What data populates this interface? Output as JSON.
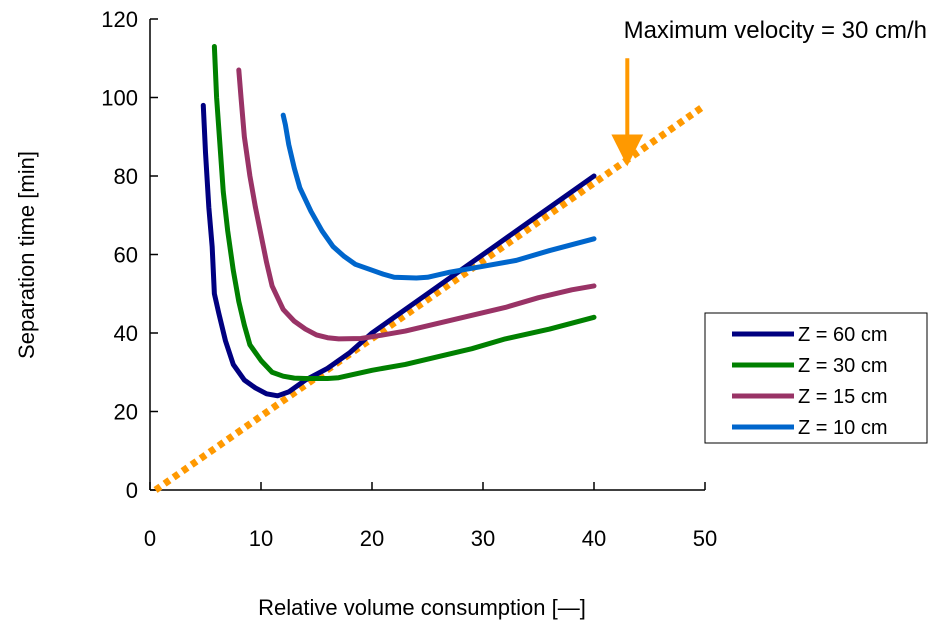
{
  "chart_data": {
    "type": "line",
    "title": "",
    "xlabel": "Relative volume consumption [—]",
    "ylabel": "Separation time [min]",
    "xlim": [
      0,
      50
    ],
    "ylim": [
      0,
      120
    ],
    "xticks": [
      0,
      10,
      20,
      30,
      40,
      50
    ],
    "yticks": [
      0,
      20,
      40,
      60,
      80,
      100,
      120
    ],
    "grid": false,
    "legend_position": "right",
    "series": [
      {
        "name": "Z = 60 cm",
        "color": "#000080",
        "points": [
          [
            4.8,
            98
          ],
          [
            5.0,
            86
          ],
          [
            5.3,
            72
          ],
          [
            5.6,
            62
          ],
          [
            5.8,
            50
          ],
          [
            6.2,
            45
          ],
          [
            6.8,
            38
          ],
          [
            7.5,
            32
          ],
          [
            8.5,
            28
          ],
          [
            9.5,
            26
          ],
          [
            10.5,
            24.5
          ],
          [
            11.5,
            24
          ],
          [
            12.5,
            25
          ],
          [
            14,
            28
          ],
          [
            16,
            31
          ],
          [
            18,
            35
          ],
          [
            20,
            40
          ],
          [
            22,
            44
          ],
          [
            25,
            50
          ],
          [
            28,
            56
          ],
          [
            31,
            62
          ],
          [
            34,
            68
          ],
          [
            37,
            74
          ],
          [
            40,
            80
          ]
        ]
      },
      {
        "name": "Z = 30 cm",
        "color": "#008000",
        "points": [
          [
            5.8,
            113
          ],
          [
            6.0,
            100
          ],
          [
            6.3,
            88
          ],
          [
            6.6,
            76
          ],
          [
            7.0,
            66
          ],
          [
            7.5,
            56
          ],
          [
            8.0,
            48
          ],
          [
            8.5,
            42
          ],
          [
            9.0,
            37
          ],
          [
            10,
            33
          ],
          [
            11,
            30
          ],
          [
            12,
            29
          ],
          [
            13,
            28.5
          ],
          [
            14,
            28.4
          ],
          [
            16,
            28.4
          ],
          [
            17,
            28.6
          ],
          [
            20,
            30.5
          ],
          [
            23,
            32
          ],
          [
            26,
            34
          ],
          [
            29,
            36
          ],
          [
            32,
            38.5
          ],
          [
            36,
            41
          ],
          [
            40,
            44
          ]
        ]
      },
      {
        "name": "Z = 15 cm",
        "color": "#993366",
        "points": [
          [
            8.0,
            107
          ],
          [
            8.2,
            100
          ],
          [
            8.5,
            90
          ],
          [
            9.0,
            80
          ],
          [
            9.5,
            72
          ],
          [
            10,
            65
          ],
          [
            10.5,
            58
          ],
          [
            11,
            52
          ],
          [
            12,
            46
          ],
          [
            13,
            43
          ],
          [
            14,
            41
          ],
          [
            15,
            39.5
          ],
          [
            16,
            38.8
          ],
          [
            17,
            38.5
          ],
          [
            19,
            38.6
          ],
          [
            21,
            39.5
          ],
          [
            23,
            40.5
          ],
          [
            26,
            42.5
          ],
          [
            29,
            44.5
          ],
          [
            32,
            46.5
          ],
          [
            35,
            49
          ],
          [
            38,
            51
          ],
          [
            40,
            52
          ]
        ]
      },
      {
        "name": "Z = 10 cm",
        "color": "#0066CC",
        "points": [
          [
            12.0,
            95.5
          ],
          [
            12.2,
            93
          ],
          [
            12.5,
            88
          ],
          [
            13,
            82
          ],
          [
            13.5,
            77
          ],
          [
            14.5,
            71
          ],
          [
            15.5,
            66
          ],
          [
            16.5,
            62
          ],
          [
            17.5,
            59.5
          ],
          [
            18.5,
            57.5
          ],
          [
            20,
            56
          ],
          [
            21,
            55
          ],
          [
            22,
            54.2
          ],
          [
            24,
            54
          ],
          [
            25,
            54.2
          ],
          [
            27,
            55.5
          ],
          [
            30,
            57
          ],
          [
            33,
            58.5
          ],
          [
            36,
            61
          ],
          [
            38,
            62.5
          ],
          [
            40,
            64
          ]
        ]
      }
    ],
    "reference_line": {
      "label": "Maximum velocity = 30 cm/h",
      "color": "#FF9900",
      "style": "dotted",
      "points": [
        [
          0.5,
          0
        ],
        [
          50,
          98
        ]
      ]
    },
    "annotation_arrow": {
      "color": "#FF9900",
      "from": [
        43,
        110
      ],
      "to": [
        43,
        84
      ]
    }
  }
}
